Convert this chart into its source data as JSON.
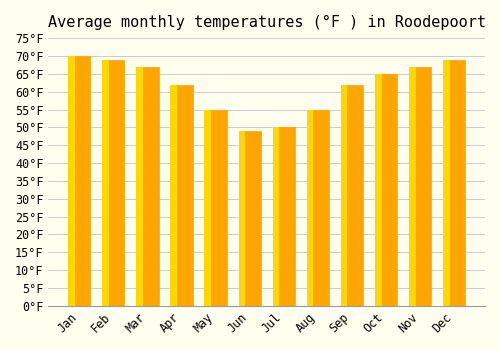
{
  "title": "Average monthly temperatures (°F ) in Roodepoort",
  "months": [
    "Jan",
    "Feb",
    "Mar",
    "Apr",
    "May",
    "Jun",
    "Jul",
    "Aug",
    "Sep",
    "Oct",
    "Nov",
    "Dec"
  ],
  "values": [
    70,
    69,
    67,
    62,
    55,
    49,
    50,
    55,
    62,
    65,
    67,
    69
  ],
  "bar_color_main": "#FFA500",
  "bar_color_gradient_top": "#FFD700",
  "background_color": "#FFFFF0",
  "grid_color": "#CCCCCC",
  "ylim": [
    0,
    75
  ],
  "yticks": [
    0,
    5,
    10,
    15,
    20,
    25,
    30,
    35,
    40,
    45,
    50,
    55,
    60,
    65,
    70,
    75
  ],
  "ylabel_suffix": "°F",
  "title_fontsize": 11,
  "tick_fontsize": 8.5,
  "font_family": "monospace"
}
